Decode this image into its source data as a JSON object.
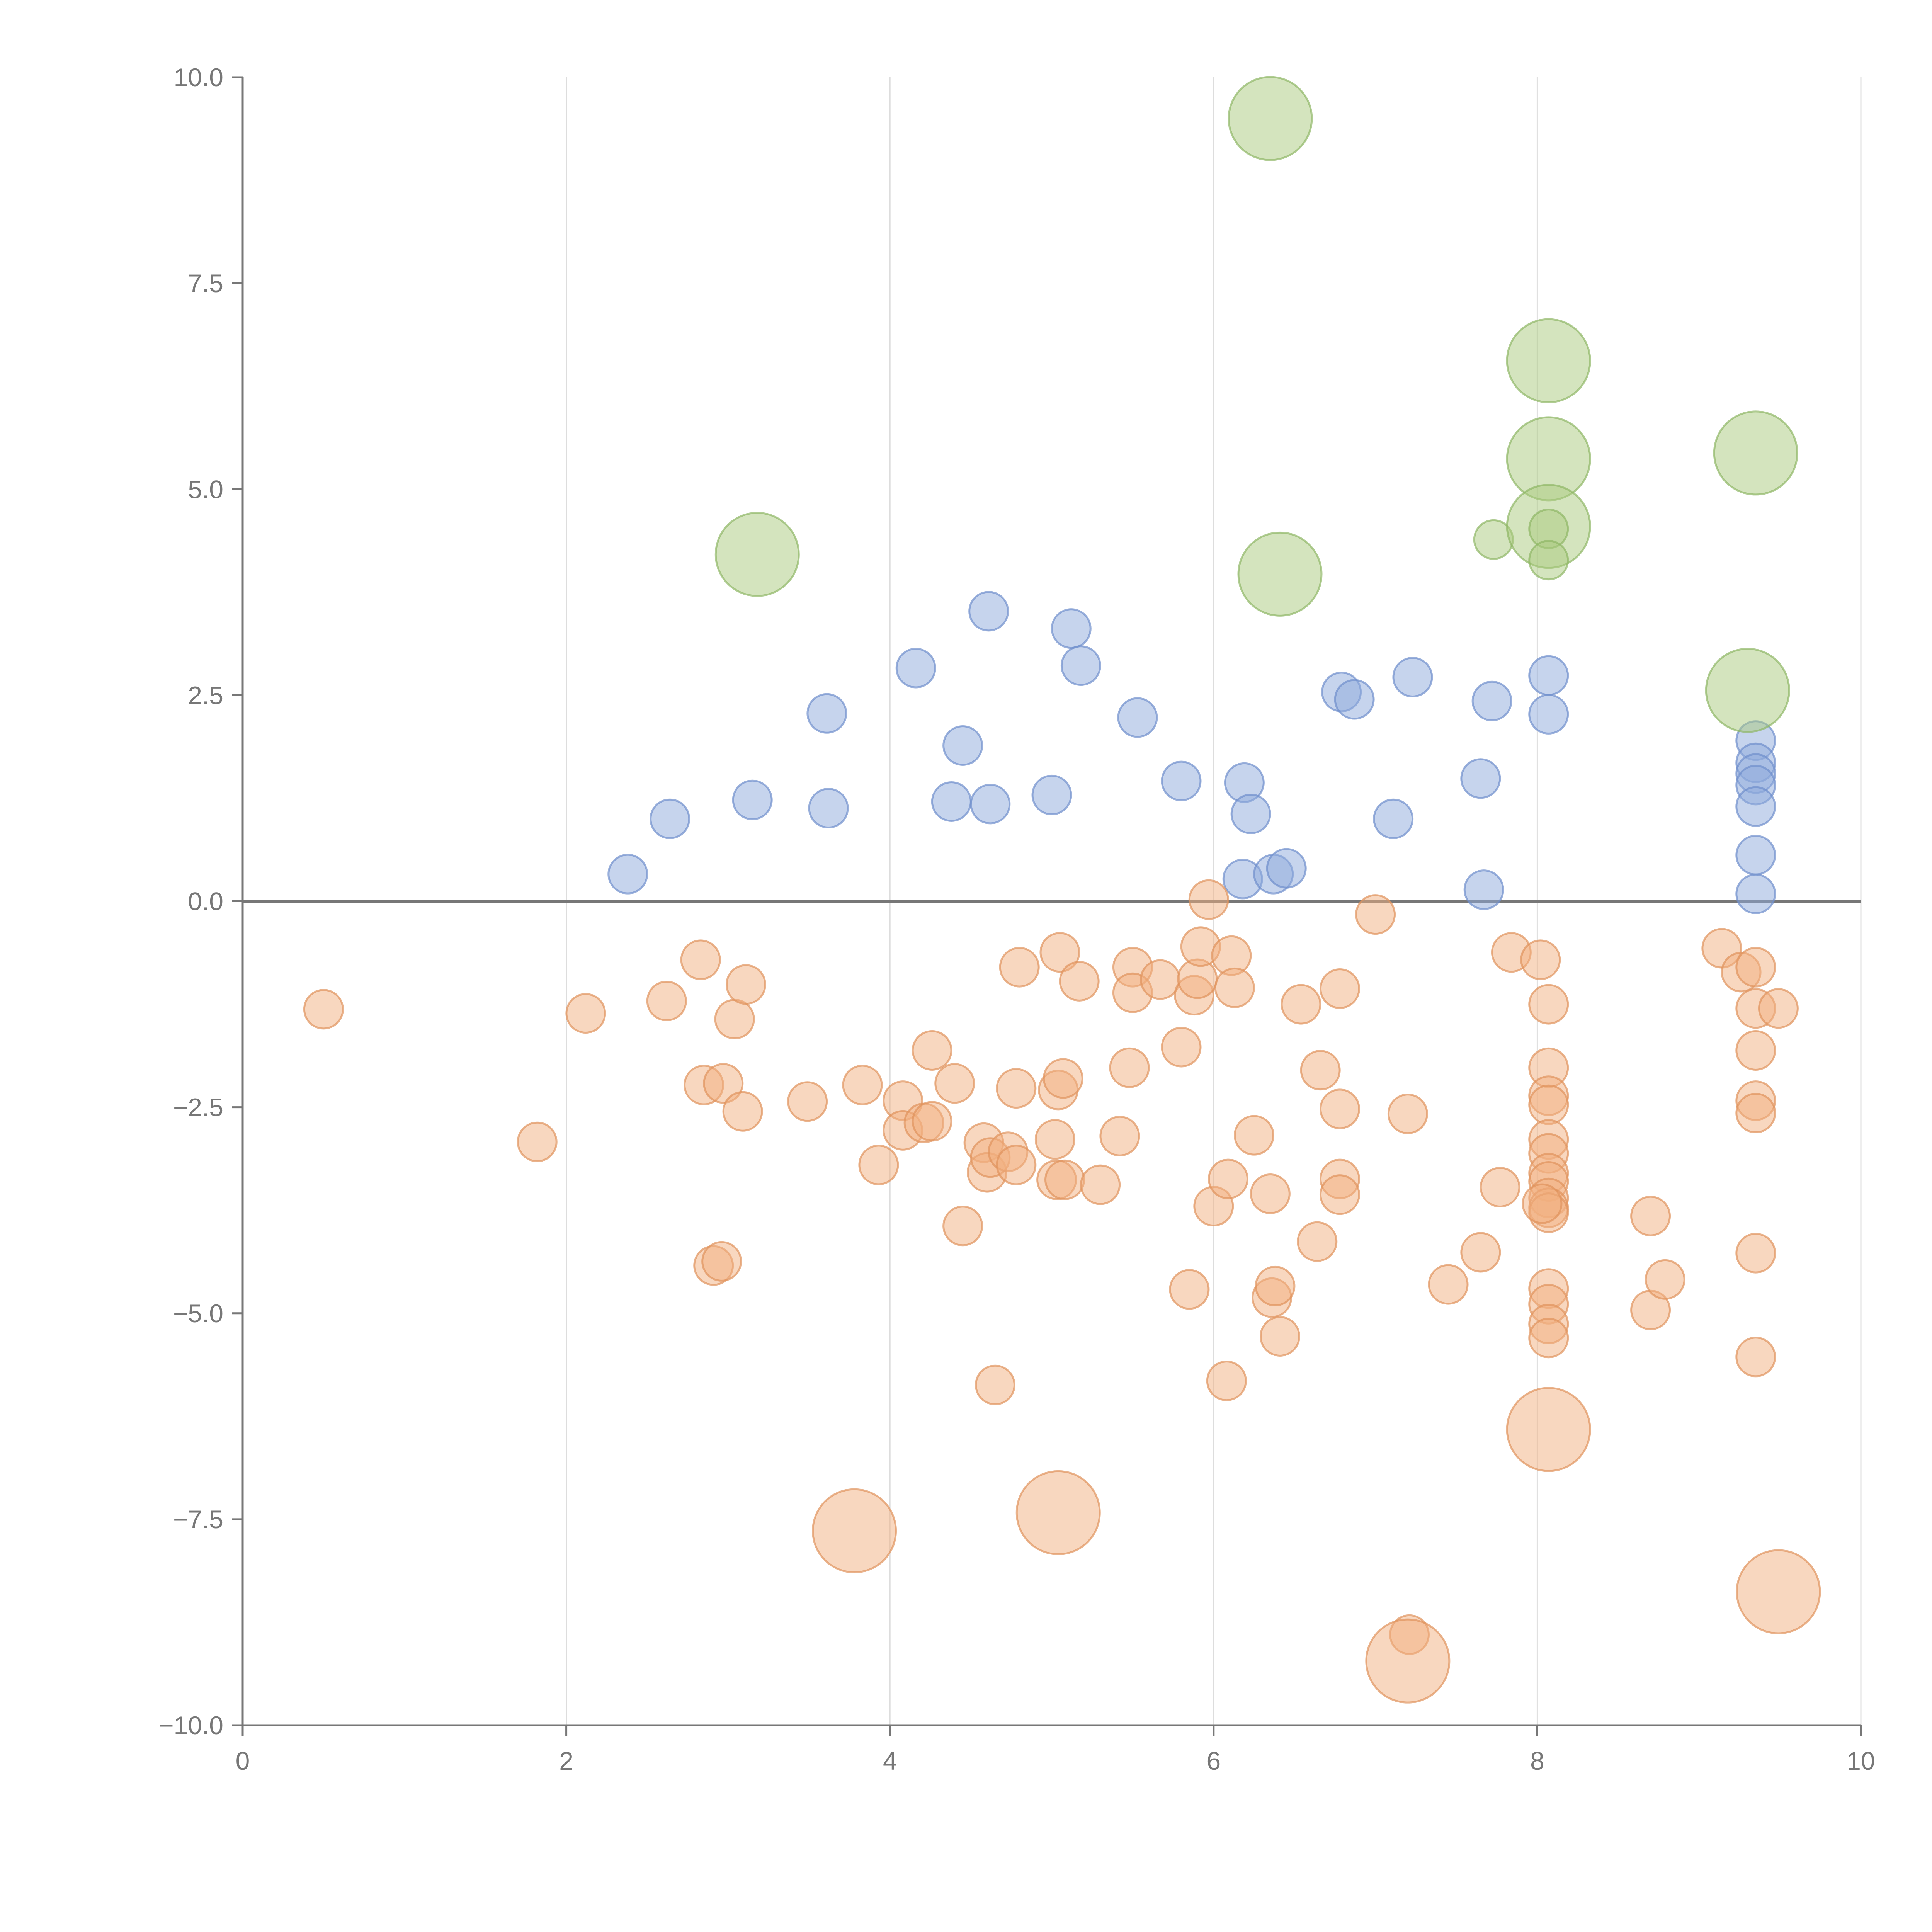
{
  "chart_data": {
    "type": "scatter",
    "title": "",
    "xlabel": "",
    "ylabel": "",
    "xlim": [
      0,
      10
    ],
    "ylim": [
      -10,
      10
    ],
    "x_ticks": [
      0,
      2,
      4,
      6,
      8,
      10
    ],
    "x_tick_labels": [
      "0",
      "2",
      "4",
      "6",
      "8",
      "10"
    ],
    "y_ticks": [
      10,
      7.5,
      5,
      2.5,
      0,
      -2.5,
      -5,
      -7.5,
      -10
    ],
    "y_tick_labels": [
      "10.0",
      "7.5",
      "5.0",
      "2.5",
      "0.0",
      "−2.5",
      "−5.0",
      "−7.5",
      "−10.0"
    ],
    "grid": {
      "vertical": true,
      "horizontal": false
    },
    "zero_line": true,
    "legend": "none",
    "marker_opacity": 0.5,
    "series": [
      {
        "color": "#8eaadb",
        "stroke": "#6f8fcc",
        "points": [
          {
            "x": 2.38,
            "y": 0.33,
            "size": 1
          },
          {
            "x": 2.64,
            "y": 1.0,
            "size": 1
          },
          {
            "x": 3.15,
            "y": 1.23,
            "size": 1
          },
          {
            "x": 3.61,
            "y": 2.28,
            "size": 1
          },
          {
            "x": 3.62,
            "y": 1.13,
            "size": 1
          },
          {
            "x": 4.16,
            "y": 2.83,
            "size": 1
          },
          {
            "x": 4.38,
            "y": 1.21,
            "size": 1
          },
          {
            "x": 4.45,
            "y": 1.89,
            "size": 1
          },
          {
            "x": 4.61,
            "y": 3.52,
            "size": 1
          },
          {
            "x": 4.62,
            "y": 1.18,
            "size": 1
          },
          {
            "x": 5.0,
            "y": 1.29,
            "size": 1
          },
          {
            "x": 5.12,
            "y": 3.31,
            "size": 1
          },
          {
            "x": 5.18,
            "y": 2.86,
            "size": 1
          },
          {
            "x": 5.53,
            "y": 2.23,
            "size": 1
          },
          {
            "x": 5.8,
            "y": 1.46,
            "size": 1
          },
          {
            "x": 6.18,
            "y": 0.27,
            "size": 1
          },
          {
            "x": 6.19,
            "y": 1.44,
            "size": 1
          },
          {
            "x": 6.23,
            "y": 1.06,
            "size": 1
          },
          {
            "x": 6.37,
            "y": 0.33,
            "size": 1
          },
          {
            "x": 6.45,
            "y": 0.4,
            "size": 1
          },
          {
            "x": 6.79,
            "y": 2.54,
            "size": 1
          },
          {
            "x": 6.87,
            "y": 2.45,
            "size": 1
          },
          {
            "x": 7.11,
            "y": 1.0,
            "size": 1
          },
          {
            "x": 7.23,
            "y": 2.72,
            "size": 1
          },
          {
            "x": 7.65,
            "y": 1.49,
            "size": 1
          },
          {
            "x": 7.67,
            "y": 0.14,
            "size": 1
          },
          {
            "x": 7.72,
            "y": 2.43,
            "size": 1
          },
          {
            "x": 8.07,
            "y": 2.74,
            "size": 1
          },
          {
            "x": 8.07,
            "y": 2.27,
            "size": 1
          },
          {
            "x": 9.35,
            "y": 1.95,
            "size": 1
          },
          {
            "x": 9.35,
            "y": 1.68,
            "size": 1
          },
          {
            "x": 9.35,
            "y": 1.55,
            "size": 1
          },
          {
            "x": 9.35,
            "y": 1.41,
            "size": 1
          },
          {
            "x": 9.35,
            "y": 1.15,
            "size": 1
          },
          {
            "x": 9.35,
            "y": 0.56,
            "size": 1
          },
          {
            "x": 9.35,
            "y": 0.09,
            "size": 1
          }
        ]
      },
      {
        "color": "#a9c97e",
        "stroke": "#8fb765",
        "points": [
          {
            "x": 3.18,
            "y": 4.21,
            "size": 2.15
          },
          {
            "x": 6.35,
            "y": 9.5,
            "size": 2.15
          },
          {
            "x": 6.41,
            "y": 3.97,
            "size": 2.15
          },
          {
            "x": 7.73,
            "y": 4.39,
            "size": 1
          },
          {
            "x": 8.07,
            "y": 6.56,
            "size": 2.15
          },
          {
            "x": 8.07,
            "y": 5.37,
            "size": 2.15
          },
          {
            "x": 8.07,
            "y": 4.55,
            "size": 2.15
          },
          {
            "x": 8.07,
            "y": 4.52,
            "size": 1
          },
          {
            "x": 8.07,
            "y": 4.14,
            "size": 1
          },
          {
            "x": 9.35,
            "y": 5.44,
            "size": 2.15
          },
          {
            "x": 9.3,
            "y": 2.56,
            "size": 2.15
          }
        ]
      },
      {
        "color": "#f2b07f",
        "stroke": "#e0935c",
        "points": [
          {
            "x": 0.5,
            "y": -1.31,
            "size": 1
          },
          {
            "x": 1.82,
            "y": -2.92,
            "size": 1
          },
          {
            "x": 2.12,
            "y": -1.36,
            "size": 1
          },
          {
            "x": 2.62,
            "y": -1.21,
            "size": 1
          },
          {
            "x": 2.83,
            "y": -0.71,
            "size": 1
          },
          {
            "x": 2.85,
            "y": -2.23,
            "size": 1
          },
          {
            "x": 2.91,
            "y": -4.42,
            "size": 1
          },
          {
            "x": 2.96,
            "y": -4.37,
            "size": 1
          },
          {
            "x": 2.97,
            "y": -2.21,
            "size": 1
          },
          {
            "x": 3.04,
            "y": -1.43,
            "size": 1
          },
          {
            "x": 3.09,
            "y": -2.55,
            "size": 1
          },
          {
            "x": 3.11,
            "y": -1.01,
            "size": 1
          },
          {
            "x": 3.49,
            "y": -2.43,
            "size": 1
          },
          {
            "x": 3.83,
            "y": -2.23,
            "size": 1
          },
          {
            "x": 3.93,
            "y": -3.2,
            "size": 1
          },
          {
            "x": 4.08,
            "y": -2.42,
            "size": 1
          },
          {
            "x": 4.08,
            "y": -2.78,
            "size": 1
          },
          {
            "x": 4.21,
            "y": -2.69,
            "size": 1
          },
          {
            "x": 4.26,
            "y": -2.67,
            "size": 1
          },
          {
            "x": 4.26,
            "y": -1.81,
            "size": 1
          },
          {
            "x": 4.4,
            "y": -2.21,
            "size": 1
          },
          {
            "x": 4.45,
            "y": -3.94,
            "size": 1
          },
          {
            "x": 4.58,
            "y": -2.93,
            "size": 1
          },
          {
            "x": 4.6,
            "y": -3.29,
            "size": 1
          },
          {
            "x": 4.62,
            "y": -3.11,
            "size": 1
          },
          {
            "x": 4.65,
            "y": -5.87,
            "size": 1
          },
          {
            "x": 4.73,
            "y": -3.04,
            "size": 1
          },
          {
            "x": 4.78,
            "y": -3.2,
            "size": 1
          },
          {
            "x": 4.78,
            "y": -2.27,
            "size": 1
          },
          {
            "x": 4.8,
            "y": -0.8,
            "size": 1
          },
          {
            "x": 5.02,
            "y": -2.89,
            "size": 1
          },
          {
            "x": 5.03,
            "y": -3.38,
            "size": 1
          },
          {
            "x": 5.04,
            "y": -2.29,
            "size": 1
          },
          {
            "x": 5.05,
            "y": -0.62,
            "size": 1
          },
          {
            "x": 5.07,
            "y": -2.15,
            "size": 1
          },
          {
            "x": 5.08,
            "y": -3.38,
            "size": 1
          },
          {
            "x": 5.17,
            "y": -0.97,
            "size": 1
          },
          {
            "x": 5.3,
            "y": -3.44,
            "size": 1
          },
          {
            "x": 5.42,
            "y": -2.85,
            "size": 1
          },
          {
            "x": 5.48,
            "y": -2.02,
            "size": 1
          },
          {
            "x": 5.5,
            "y": -0.8,
            "size": 1
          },
          {
            "x": 5.5,
            "y": -1.11,
            "size": 1
          },
          {
            "x": 5.67,
            "y": -0.95,
            "size": 1
          },
          {
            "x": 5.8,
            "y": -1.77,
            "size": 1
          },
          {
            "x": 5.85,
            "y": -4.71,
            "size": 1
          },
          {
            "x": 5.88,
            "y": -1.14,
            "size": 1
          },
          {
            "x": 5.9,
            "y": -0.94,
            "size": 1
          },
          {
            "x": 5.92,
            "y": -0.55,
            "size": 1
          },
          {
            "x": 5.97,
            "y": 0.02,
            "size": 1
          },
          {
            "x": 6.0,
            "y": -3.7,
            "size": 1
          },
          {
            "x": 6.08,
            "y": -5.82,
            "size": 1
          },
          {
            "x": 6.09,
            "y": -3.37,
            "size": 1
          },
          {
            "x": 6.11,
            "y": -0.66,
            "size": 1
          },
          {
            "x": 6.13,
            "y": -1.05,
            "size": 1
          },
          {
            "x": 6.25,
            "y": -2.84,
            "size": 1
          },
          {
            "x": 6.35,
            "y": -3.55,
            "size": 1
          },
          {
            "x": 6.36,
            "y": -4.81,
            "size": 1
          },
          {
            "x": 6.38,
            "y": -4.67,
            "size": 1
          },
          {
            "x": 6.41,
            "y": -5.28,
            "size": 1
          },
          {
            "x": 6.54,
            "y": -1.25,
            "size": 1
          },
          {
            "x": 6.64,
            "y": -4.13,
            "size": 1
          },
          {
            "x": 6.66,
            "y": -2.05,
            "size": 1
          },
          {
            "x": 6.78,
            "y": -3.37,
            "size": 1
          },
          {
            "x": 6.78,
            "y": -3.56,
            "size": 1
          },
          {
            "x": 6.78,
            "y": -2.52,
            "size": 1
          },
          {
            "x": 6.78,
            "y": -1.06,
            "size": 1
          },
          {
            "x": 7.0,
            "y": -0.16,
            "size": 1
          },
          {
            "x": 7.2,
            "y": -2.58,
            "size": 1
          },
          {
            "x": 7.21,
            "y": -8.9,
            "size": 1
          },
          {
            "x": 7.45,
            "y": -4.65,
            "size": 1
          },
          {
            "x": 7.65,
            "y": -4.26,
            "size": 1
          },
          {
            "x": 7.77,
            "y": -3.47,
            "size": 1
          },
          {
            "x": 7.84,
            "y": -0.62,
            "size": 1
          },
          {
            "x": 8.02,
            "y": -0.71,
            "size": 1
          },
          {
            "x": 8.07,
            "y": -1.25,
            "size": 1
          },
          {
            "x": 8.07,
            "y": -2.02,
            "size": 1
          },
          {
            "x": 8.07,
            "y": -2.36,
            "size": 1
          },
          {
            "x": 8.07,
            "y": -2.47,
            "size": 1
          },
          {
            "x": 8.07,
            "y": -2.89,
            "size": 1
          },
          {
            "x": 8.07,
            "y": -3.06,
            "size": 1
          },
          {
            "x": 8.07,
            "y": -3.3,
            "size": 1
          },
          {
            "x": 8.07,
            "y": -3.4,
            "size": 1
          },
          {
            "x": 8.07,
            "y": -3.6,
            "size": 1
          },
          {
            "x": 8.07,
            "y": -3.72,
            "size": 1
          },
          {
            "x": 8.07,
            "y": -3.78,
            "size": 1
          },
          {
            "x": 8.03,
            "y": -3.67,
            "size": 1
          },
          {
            "x": 8.07,
            "y": -4.7,
            "size": 1
          },
          {
            "x": 8.07,
            "y": -4.89,
            "size": 1
          },
          {
            "x": 8.07,
            "y": -5.13,
            "size": 1
          },
          {
            "x": 8.07,
            "y": -5.3,
            "size": 1
          },
          {
            "x": 8.7,
            "y": -3.82,
            "size": 1
          },
          {
            "x": 8.7,
            "y": -4.96,
            "size": 1
          },
          {
            "x": 8.79,
            "y": -4.59,
            "size": 1
          },
          {
            "x": 9.14,
            "y": -0.57,
            "size": 1
          },
          {
            "x": 9.26,
            "y": -0.86,
            "size": 1
          },
          {
            "x": 9.35,
            "y": -0.8,
            "size": 1
          },
          {
            "x": 9.35,
            "y": -1.3,
            "size": 1
          },
          {
            "x": 9.35,
            "y": -1.81,
            "size": 1
          },
          {
            "x": 9.35,
            "y": -2.42,
            "size": 1
          },
          {
            "x": 9.35,
            "y": -2.57,
            "size": 1
          },
          {
            "x": 9.35,
            "y": -4.27,
            "size": 1
          },
          {
            "x": 9.35,
            "y": -5.53,
            "size": 1
          },
          {
            "x": 9.49,
            "y": -1.3,
            "size": 1
          },
          {
            "x": 3.78,
            "y": -7.64,
            "size": 2.15
          },
          {
            "x": 5.04,
            "y": -7.42,
            "size": 2.15
          },
          {
            "x": 8.07,
            "y": -6.41,
            "size": 2.15
          },
          {
            "x": 7.2,
            "y": -9.22,
            "size": 2.15
          },
          {
            "x": 9.49,
            "y": -8.38,
            "size": 2.15
          }
        ]
      }
    ]
  }
}
